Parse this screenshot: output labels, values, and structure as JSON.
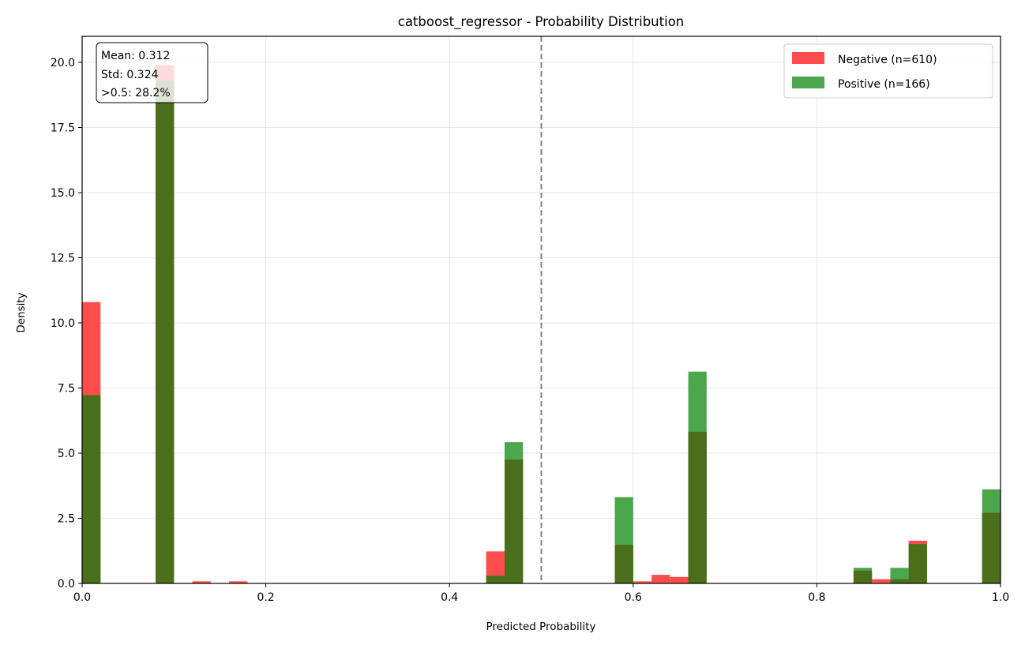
{
  "chart_data": {
    "type": "bar",
    "title": "catboost_regressor - Probability Distribution",
    "xlabel": "Predicted Probability",
    "ylabel": "Density",
    "xlim": [
      0,
      1
    ],
    "ylim": [
      0,
      21
    ],
    "grid": true,
    "legend_position": "top-right",
    "bin_width": 0.02,
    "xticks": [
      "0.0",
      "0.2",
      "0.4",
      "0.6",
      "0.8",
      "1.0"
    ],
    "yticks": [
      "0.0",
      "2.5",
      "5.0",
      "7.5",
      "10.0",
      "12.5",
      "15.0",
      "17.5",
      "20.0"
    ],
    "threshold": 0.5,
    "stats_box": [
      "Mean: 0.312",
      "Std: 0.324",
      ">0.5: 28.2%"
    ],
    "series": [
      {
        "name": "Negative (n=610)",
        "color": "#ff4c4c",
        "bins": [
          {
            "x": 0.0,
            "y": 10.8
          },
          {
            "x": 0.08,
            "y": 19.9
          },
          {
            "x": 0.12,
            "y": 0.08
          },
          {
            "x": 0.16,
            "y": 0.08
          },
          {
            "x": 0.44,
            "y": 1.23
          },
          {
            "x": 0.46,
            "y": 4.75
          },
          {
            "x": 0.58,
            "y": 1.48
          },
          {
            "x": 0.6,
            "y": 0.08
          },
          {
            "x": 0.62,
            "y": 0.33
          },
          {
            "x": 0.64,
            "y": 0.25
          },
          {
            "x": 0.66,
            "y": 5.82
          },
          {
            "x": 0.84,
            "y": 0.49
          },
          {
            "x": 0.86,
            "y": 0.16
          },
          {
            "x": 0.88,
            "y": 0.16
          },
          {
            "x": 0.9,
            "y": 1.64
          },
          {
            "x": 0.98,
            "y": 2.71
          }
        ]
      },
      {
        "name": "Positive (n=166)",
        "color": "#4ca64c",
        "bins": [
          {
            "x": 0.0,
            "y": 7.23
          },
          {
            "x": 0.08,
            "y": 19.3
          },
          {
            "x": 0.44,
            "y": 0.3
          },
          {
            "x": 0.46,
            "y": 5.42
          },
          {
            "x": 0.58,
            "y": 3.31
          },
          {
            "x": 0.66,
            "y": 8.13
          },
          {
            "x": 0.84,
            "y": 0.6
          },
          {
            "x": 0.88,
            "y": 0.6
          },
          {
            "x": 0.9,
            "y": 1.51
          },
          {
            "x": 0.98,
            "y": 3.61
          }
        ]
      }
    ],
    "overlap_color": "#4a6e19"
  }
}
